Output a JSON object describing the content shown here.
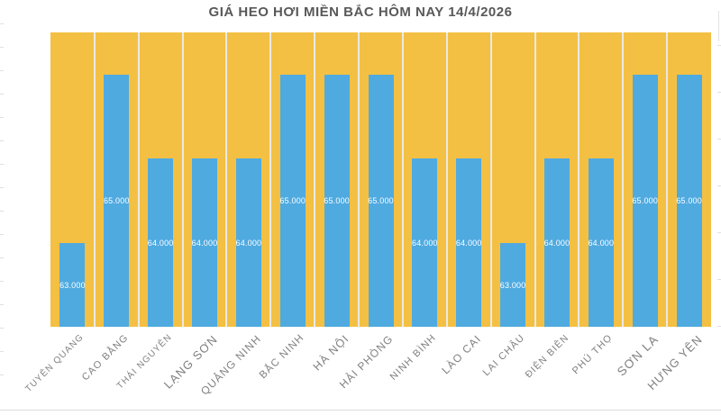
{
  "chart_data": {
    "type": "bar",
    "title": "GIÁ HEO HƠI MIỀN BẮC HÔM NAY 14/4/2026",
    "categories": [
      "TUYÊN QUANG",
      "CAO BẰNG",
      "THÁI NGUYÊN",
      "LẠNG SƠN",
      "QUẢNG NINH",
      "BẮC NINH",
      "HÀ NỘI",
      "HẢI PHÒNG",
      "NINH BÌNH",
      "LÀO CAI",
      "LAI CHÂU",
      "ĐIỆN BIÊN",
      "PHÚ THỌ",
      "SƠN LA",
      "HƯNG YÊN"
    ],
    "values": [
      63000,
      65000,
      64000,
      64000,
      64000,
      65000,
      65000,
      65000,
      64000,
      64000,
      63000,
      64000,
      64000,
      65000,
      65000
    ],
    "value_labels": [
      "63.000",
      "65.000",
      "64.000",
      "64.000",
      "64.000",
      "65.000",
      "65.000",
      "65.000",
      "64.000",
      "64.000",
      "63.000",
      "64.000",
      "64.000",
      "65.000",
      "65.000"
    ],
    "xlabel": "",
    "ylabel": "",
    "ylim": [
      62000,
      65500
    ],
    "legend": "none",
    "grid": "vertical category separators only",
    "value_label_position": "center of bar",
    "colors": {
      "plot_background": "#F3C043",
      "bar": "#4FAAE0",
      "value_label": "#FFFFFF",
      "title": "#595959",
      "category_label": "#808080",
      "gridline": "#EBE9E3"
    }
  }
}
